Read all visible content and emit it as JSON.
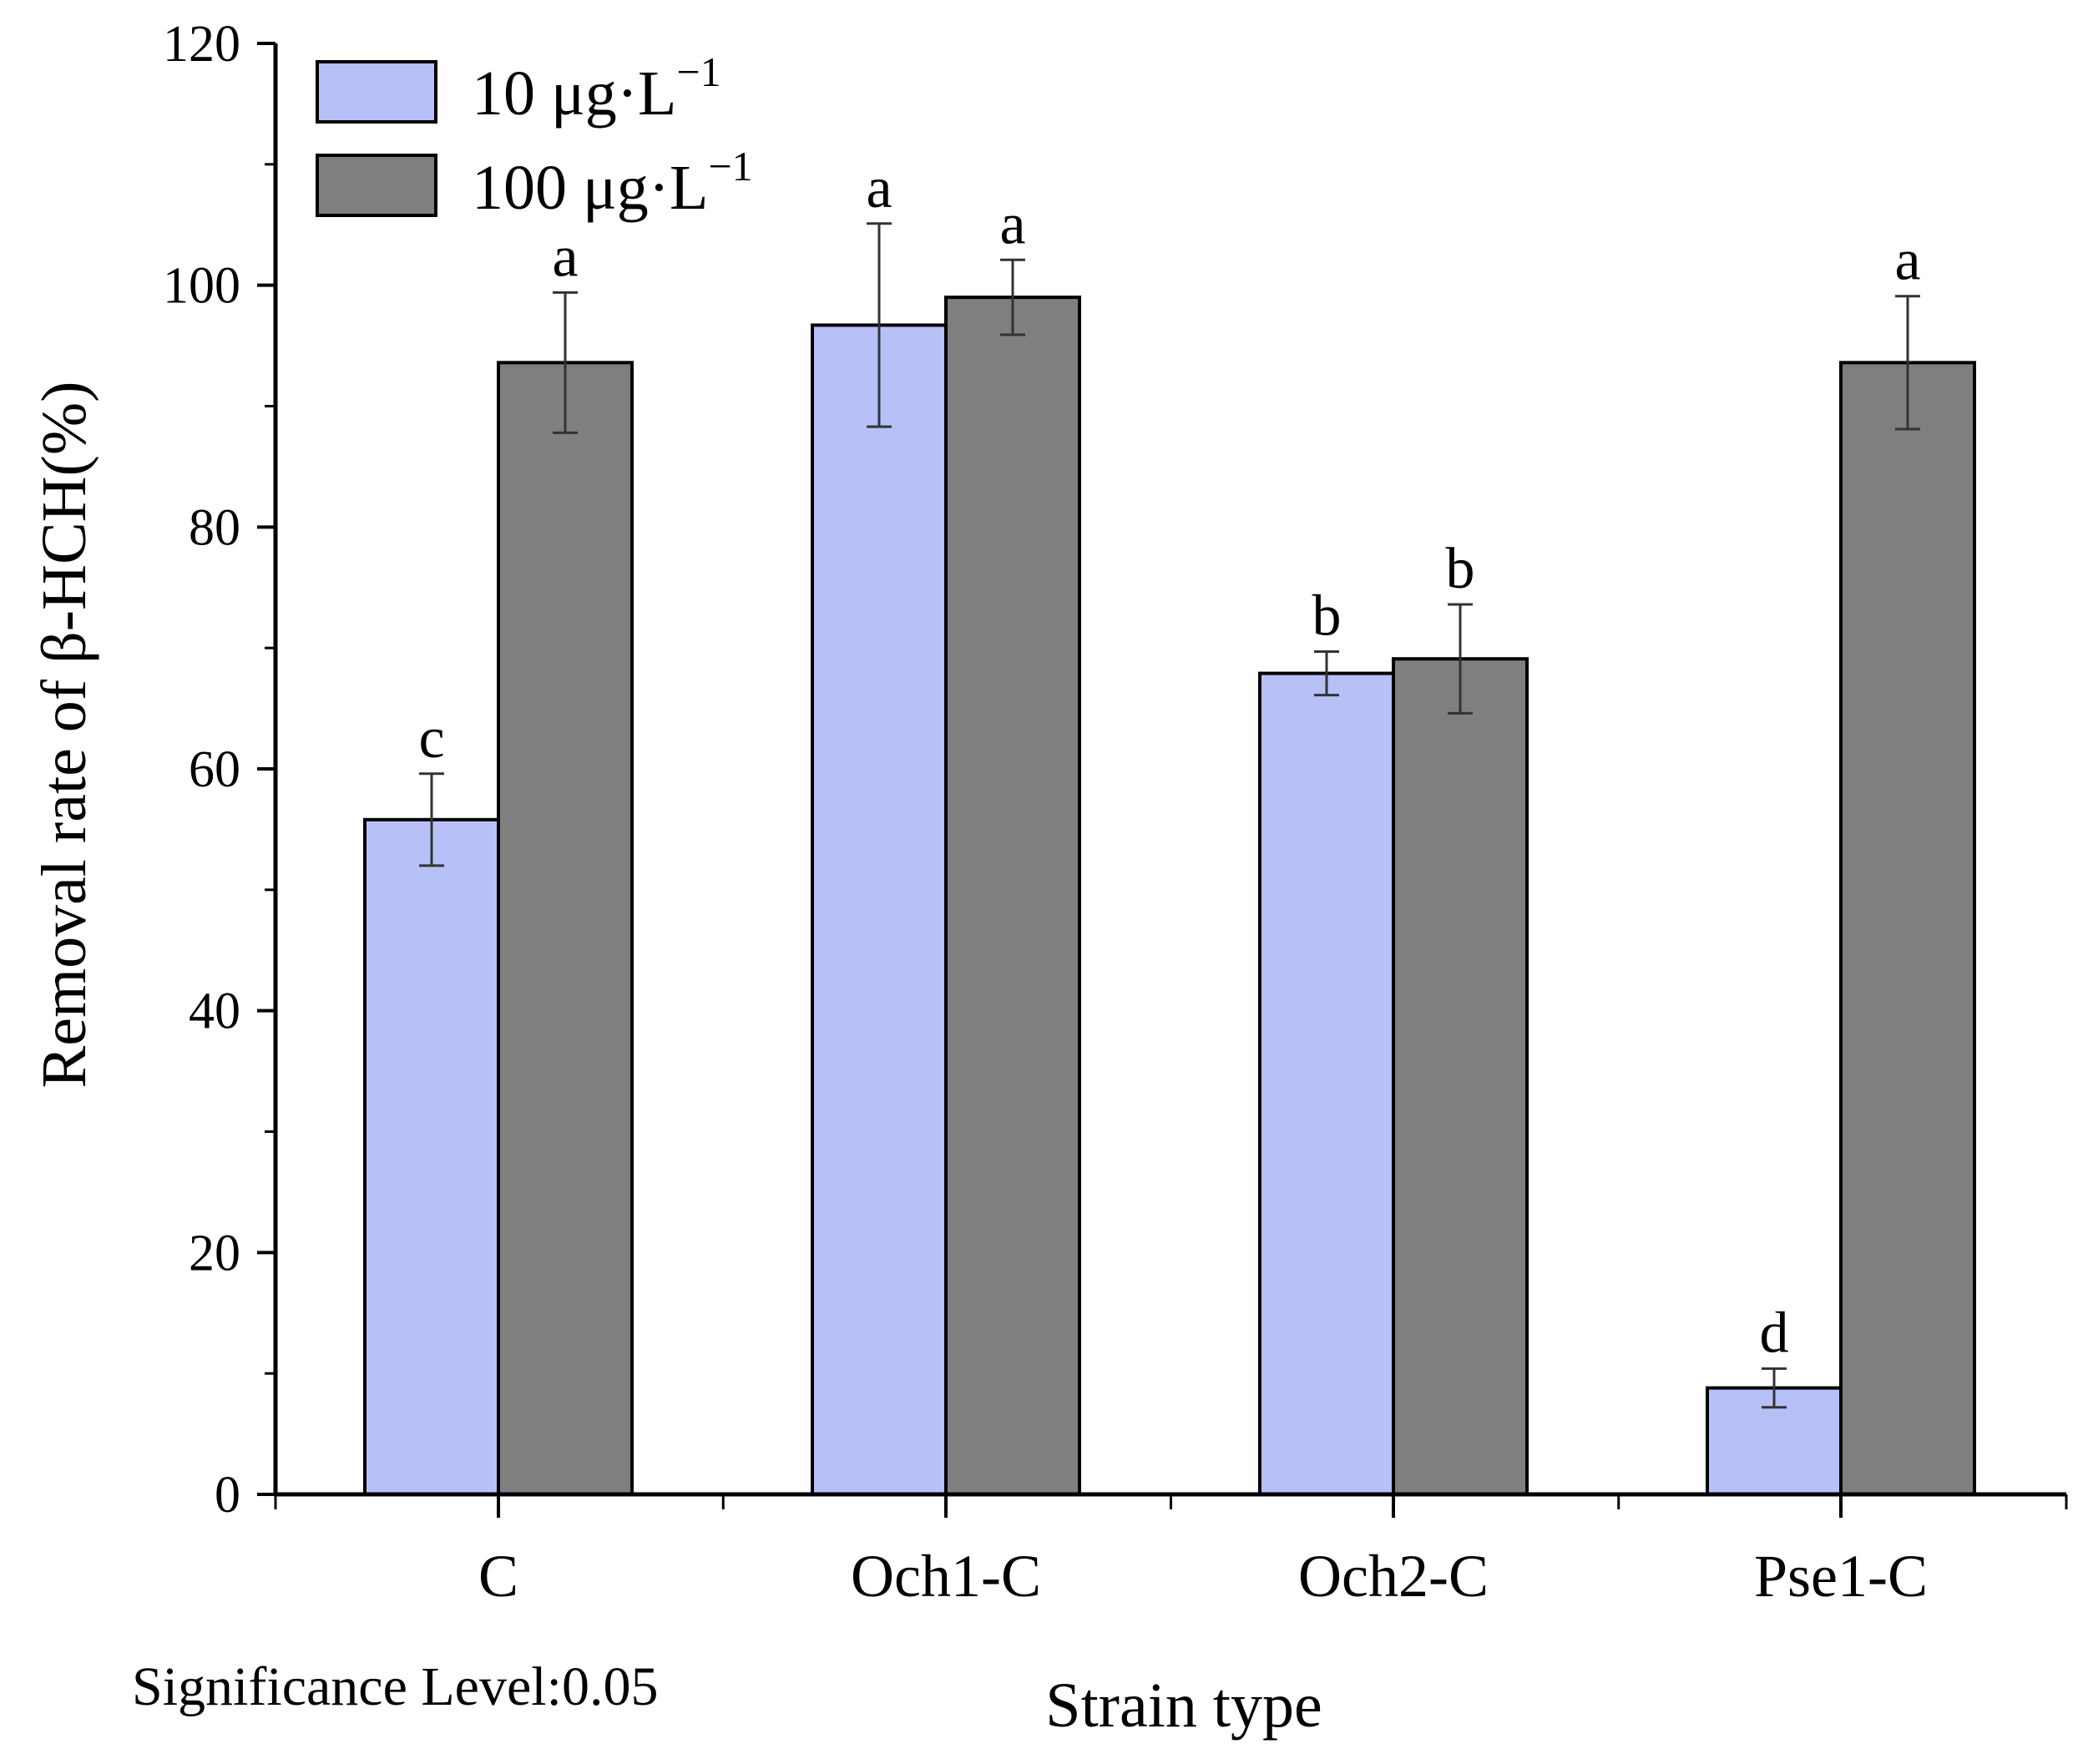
{
  "chart_data": {
    "type": "bar",
    "title": "",
    "xlabel": "Strain type",
    "ylabel": "Removal rate of β-HCH(%)",
    "ylim": [
      0,
      120
    ],
    "yticks": [
      0,
      20,
      40,
      60,
      80,
      100,
      120
    ],
    "categories": [
      "C",
      "Och1-C",
      "Och2-C",
      "Pse1-C"
    ],
    "series": [
      {
        "name": "10 μg·L",
        "superscript": "−1",
        "color": "#b8c0f8",
        "values": [
          55.8,
          96.7,
          67.9,
          8.8
        ],
        "errors": [
          3.8,
          8.4,
          1.8,
          1.6
        ],
        "significance": [
          "c",
          "a",
          "b",
          "d"
        ]
      },
      {
        "name": "100 μg·L",
        "superscript": "−1",
        "color": "#7f7f7f",
        "values": [
          93.6,
          99.0,
          69.1,
          93.6
        ],
        "errors": [
          5.8,
          3.1,
          4.5,
          5.5
        ],
        "significance": [
          "a",
          "a",
          "b",
          "a"
        ]
      }
    ],
    "legend_position": "top-left",
    "grid": false,
    "annotation": "Significance Level:0.05"
  }
}
